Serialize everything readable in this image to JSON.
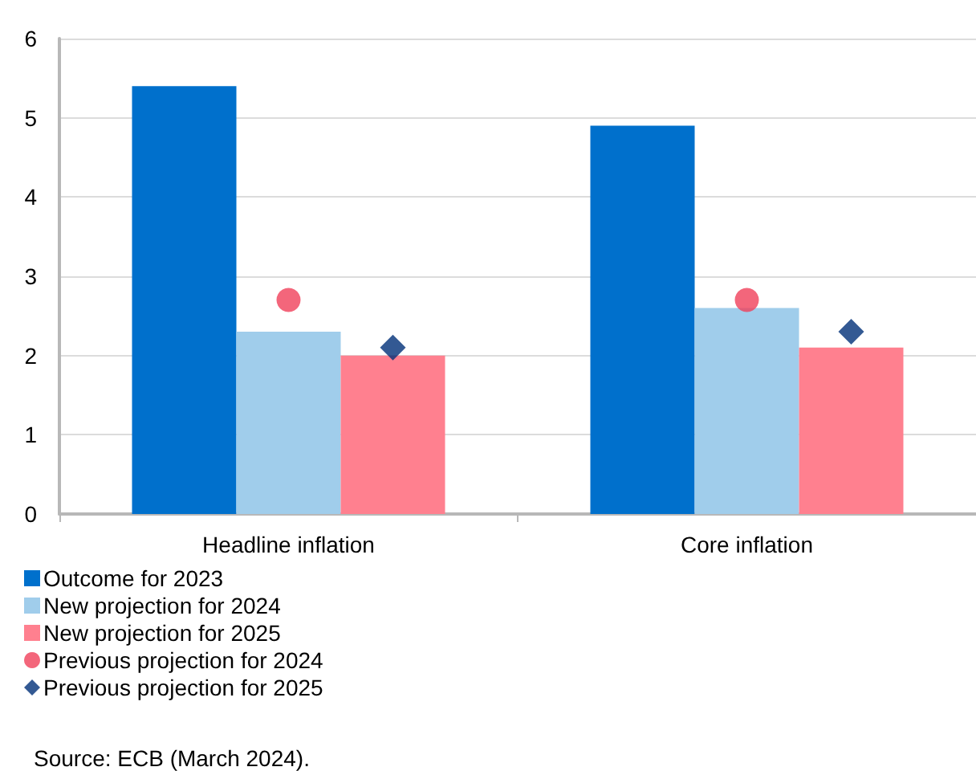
{
  "chart_data": {
    "type": "bar",
    "categories": [
      "Headline inflation",
      "Core inflation"
    ],
    "series": [
      {
        "name": "Outcome for 2023",
        "color": "#0070cc",
        "values": [
          5.4,
          4.9
        ]
      },
      {
        "name": "New projection for 2024",
        "color": "#a0cdeb",
        "values": [
          2.3,
          2.6
        ]
      },
      {
        "name": "New projection for 2025",
        "color": "#ff808f",
        "values": [
          2.0,
          2.1
        ]
      },
      {
        "name": "Previous projection for 2024",
        "type": "scatter",
        "marker": "circle",
        "color": "#f0405a",
        "values": [
          2.7,
          2.7
        ]
      },
      {
        "name": "Previous projection for 2025",
        "type": "scatter",
        "marker": "diamond",
        "color": "#003078",
        "values": [
          2.1,
          2.3
        ]
      }
    ],
    "ylim": [
      0,
      6
    ],
    "yticks": [
      0,
      1,
      2,
      3,
      4,
      5,
      6
    ],
    "grid": "y",
    "legend": "bottom left",
    "annotations": [
      "Source: ECB (March 2024)."
    ]
  }
}
